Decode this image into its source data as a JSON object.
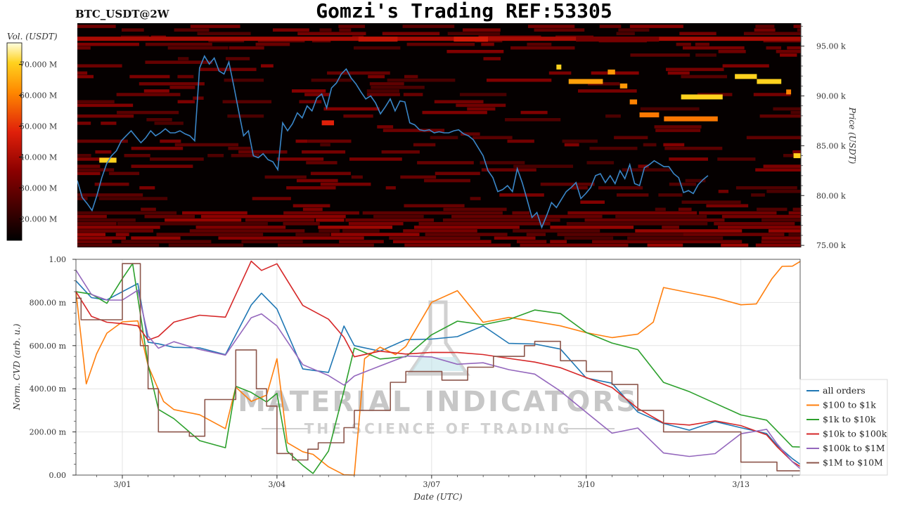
{
  "header": {
    "title": "Gomzi's Trading REF:53305",
    "pair": "BTC_USDT@2W"
  },
  "watermark": {
    "line1": "MATERIAL INDICATORS",
    "line2": "THE SCIENCE OF TRADING"
  },
  "colors": {
    "price_line": "#3a86c8",
    "heatmap_bg": "#050000",
    "all_orders": "#1f77b4",
    "usd_100_1k": "#ff7f0e",
    "usd_1k_10k": "#2ca02c",
    "usd_10k_100k": "#d62728",
    "usd_100k_1m": "#9467bd",
    "usd_1m_10m": "#8c564b"
  },
  "chart_data": [
    {
      "type": "heatmap",
      "name": "orderbook-heatmap",
      "colorbar": {
        "label": "Vol. (USDT)",
        "ticks": [
          "70.000 M",
          "60.000 M",
          "50.000 M",
          "40.000 M",
          "30.000 M",
          "20.000 M"
        ],
        "tick_values": [
          70,
          60,
          50,
          40,
          30,
          20
        ],
        "range": [
          13,
          77
        ]
      },
      "ylabel": "Price (USDT)",
      "yticks": [
        "95.00 k",
        "90.00 k",
        "85.00 k",
        "80.00 k",
        "75.00 k"
      ],
      "ytick_values": [
        95,
        90,
        85,
        80,
        75
      ],
      "ylim": [
        74.8,
        97.3
      ],
      "xlim": [
        -1.2,
        13.6
      ],
      "price_series": {
        "x": [
          -1.2,
          -1.1,
          -1.0,
          -0.9,
          -0.8,
          -0.7,
          -0.6,
          -0.5,
          -0.4,
          -0.3,
          -0.2,
          -0.1,
          0.0,
          0.1,
          0.2,
          0.3,
          0.4,
          0.5,
          0.6,
          0.7,
          0.8,
          0.9,
          1.0,
          1.1,
          1.2,
          1.3,
          1.4,
          1.5,
          1.6,
          1.7,
          1.8,
          1.9,
          2.0,
          2.1,
          2.2,
          2.3,
          2.4,
          2.5,
          2.6,
          2.7,
          2.8,
          2.9,
          3.0,
          3.1,
          3.2,
          3.3,
          3.4,
          3.5,
          3.6,
          3.7,
          3.8,
          3.9,
          4.0,
          4.1,
          4.2,
          4.3,
          4.4,
          4.5,
          4.6,
          4.7,
          4.8,
          4.9,
          5.0,
          5.1,
          5.2,
          5.3,
          5.4,
          5.5,
          5.6,
          5.7,
          5.8,
          5.9,
          6.0,
          6.1,
          6.2,
          6.3,
          6.4,
          6.5,
          6.6,
          6.7,
          6.8,
          6.9,
          7.0,
          7.1,
          7.2,
          7.3,
          7.4,
          7.5,
          7.6,
          7.7,
          7.8,
          7.9,
          8.0,
          8.1,
          8.2,
          8.3,
          8.4,
          8.5,
          8.6,
          8.7,
          8.8,
          8.9,
          9.0,
          9.1,
          9.2,
          9.3,
          9.4,
          9.5,
          9.6,
          9.7,
          9.8,
          9.9,
          10.0,
          10.1,
          10.2,
          10.3,
          10.4,
          10.5,
          10.6,
          10.7,
          10.8,
          10.9,
          11.0,
          11.1,
          11.2,
          11.3,
          11.4,
          11.5,
          11.6,
          11.7,
          11.8,
          11.9,
          12.0,
          12.1,
          12.2,
          12.3,
          12.4,
          12.5,
          12.6,
          12.7,
          12.8,
          12.9,
          13.0,
          13.1,
          13.2,
          13.3,
          13.4,
          13.5,
          13.6
        ],
        "y": [
          81.5,
          79.8,
          79.2,
          78.5,
          80.0,
          81.8,
          83.2,
          84.0,
          84.5,
          85.5,
          86.0,
          86.5,
          85.9,
          85.3,
          85.8,
          86.5,
          86.0,
          86.3,
          86.7,
          86.3,
          86.3,
          86.5,
          86.2,
          86.0,
          85.5,
          92.8,
          94.0,
          93.2,
          93.8,
          92.5,
          92.2,
          93.4,
          91.0,
          88.5,
          86.0,
          86.5,
          84.0,
          83.8,
          84.2,
          83.6,
          83.4,
          82.6,
          87.3,
          86.5,
          87.2,
          88.3,
          87.8,
          89.0,
          88.5,
          89.8,
          90.2,
          88.8,
          90.8,
          91.3,
          92.2,
          92.7,
          91.8,
          91.2,
          90.4,
          89.7,
          90.0,
          89.3,
          88.2,
          88.9,
          89.7,
          88.5,
          89.5,
          89.4,
          87.3,
          87.1,
          86.6,
          86.5,
          86.6,
          86.3,
          86.4,
          86.3,
          86.3,
          86.5,
          86.6,
          86.2,
          86.0,
          85.6,
          84.8,
          84.0,
          82.5,
          81.8,
          80.4,
          80.6,
          81.0,
          80.4,
          82.7,
          81.3,
          79.6,
          77.8,
          78.3,
          76.8,
          78.0,
          79.3,
          78.8,
          79.6,
          80.4,
          80.8,
          81.3,
          79.7,
          80.2,
          80.8,
          82.0,
          82.2,
          81.3,
          82.0,
          81.2,
          82.5,
          81.7,
          83.1,
          81.2,
          81.0,
          82.8,
          83.1,
          83.5,
          83.2,
          82.9,
          82.9,
          82.2,
          81.8,
          80.3,
          80.5,
          80.2,
          81.1,
          81.6,
          82.0
        ]
      },
      "large_walls": [
        {
          "x0": -0.75,
          "x1": -0.4,
          "price": 83.55,
          "level": 90
        },
        {
          "x0": 8.6,
          "x1": 8.7,
          "price": 92.9,
          "level": 90
        },
        {
          "x0": 8.85,
          "x1": 9.55,
          "price": 91.45,
          "level": 80
        },
        {
          "x0": 9.65,
          "x1": 9.8,
          "price": 92.4,
          "level": 78
        },
        {
          "x0": 9.9,
          "x1": 10.05,
          "price": 91.0,
          "level": 78
        },
        {
          "x0": 10.1,
          "x1": 10.25,
          "price": 89.4,
          "level": 74
        },
        {
          "x0": 10.3,
          "x1": 10.7,
          "price": 88.1,
          "level": 72
        },
        {
          "x0": 10.8,
          "x1": 11.9,
          "price": 87.7,
          "level": 72
        },
        {
          "x0": 11.15,
          "x1": 12.0,
          "price": 89.9,
          "level": 90
        },
        {
          "x0": 12.25,
          "x1": 12.7,
          "price": 91.95,
          "level": 90
        },
        {
          "x0": 12.7,
          "x1": 13.2,
          "price": 91.45,
          "level": 90
        },
        {
          "x0": 13.3,
          "x1": 13.4,
          "price": 90.4,
          "level": 74
        },
        {
          "x0": 13.45,
          "x1": 13.6,
          "price": 84.0,
          "level": 90
        },
        {
          "x0": 9.0,
          "x1": 10.7,
          "price": 95.7,
          "level": 30
        },
        {
          "x0": 3.8,
          "x1": 4.05,
          "price": 87.3,
          "level": 55
        },
        {
          "x0": 4.55,
          "x1": 5.35,
          "price": 95.7,
          "level": 48
        },
        {
          "x0": 6.5,
          "x1": 7.2,
          "price": 95.7,
          "level": 52
        }
      ]
    },
    {
      "type": "line",
      "name": "normalized-cvd",
      "xlabel": "Date (UTC)",
      "ylabel": "Norm. CVD (arb. u.)",
      "xticks": [
        "3/01",
        "3/04",
        "3/07",
        "3/10",
        "3/13"
      ],
      "xtick_values": [
        0,
        3,
        6,
        9,
        12
      ],
      "xlim": [
        -0.9,
        13.15
      ],
      "yticks": [
        "1.00",
        "800.00 m",
        "600.00 m",
        "400.00 m",
        "200.00 m",
        "0.00"
      ],
      "ytick_values": [
        1.0,
        0.8,
        0.6,
        0.4,
        0.2,
        0.0
      ],
      "ylim": [
        0,
        1
      ],
      "legend": "right",
      "series": [
        {
          "name": "all orders",
          "x": [
            -0.9,
            -0.6,
            -0.3,
            0.0,
            0.3,
            0.5,
            0.7,
            1.0,
            1.5,
            2.0,
            2.5,
            2.7,
            3.0,
            3.5,
            4.0,
            4.3,
            4.5,
            5.0,
            5.5,
            6.0,
            6.5,
            7.0,
            7.5,
            8.0,
            8.5,
            9.0,
            9.5,
            10.0,
            10.5,
            11.0,
            11.5,
            12.0,
            12.5,
            12.7,
            13.0,
            13.15
          ],
          "y": [
            0.9,
            0.82,
            0.8,
            0.85,
            0.9,
            0.62,
            0.6,
            0.6,
            0.6,
            0.57,
            0.8,
            0.85,
            0.78,
            0.5,
            0.48,
            0.68,
            0.6,
            0.57,
            0.62,
            0.62,
            0.63,
            0.68,
            0.6,
            0.6,
            0.58,
            0.45,
            0.43,
            0.3,
            0.25,
            0.22,
            0.26,
            0.23,
            0.2,
            0.15,
            0.08,
            0.05
          ]
        },
        {
          "name": "$100 to $1k",
          "x": [
            -0.9,
            -0.7,
            -0.5,
            -0.3,
            0.0,
            0.3,
            0.5,
            0.8,
            1.0,
            1.5,
            2.0,
            2.2,
            2.5,
            2.8,
            3.0,
            3.2,
            3.5,
            3.7,
            4.0,
            4.3,
            4.5,
            4.7,
            5.0,
            5.3,
            5.5,
            6.0,
            6.5,
            7.0,
            7.5,
            8.0,
            8.5,
            9.0,
            9.5,
            10.0,
            10.3,
            10.5,
            11.0,
            11.5,
            12.0,
            12.3,
            12.6,
            12.8,
            13.0,
            13.15
          ],
          "y": [
            0.85,
            0.42,
            0.55,
            0.65,
            0.7,
            0.72,
            0.5,
            0.35,
            0.3,
            0.28,
            0.22,
            0.4,
            0.35,
            0.38,
            0.55,
            0.15,
            0.12,
            0.1,
            0.05,
            0.0,
            0.0,
            0.55,
            0.6,
            0.55,
            0.6,
            0.8,
            0.85,
            0.7,
            0.72,
            0.7,
            0.68,
            0.65,
            0.63,
            0.65,
            0.72,
            0.87,
            0.85,
            0.83,
            0.8,
            0.8,
            0.9,
            0.97,
            0.98,
            0.99
          ]
        },
        {
          "name": "$1k to $10k",
          "x": [
            -0.9,
            -0.6,
            -0.3,
            0.0,
            0.2,
            0.5,
            0.7,
            1.0,
            1.5,
            2.0,
            2.2,
            2.5,
            2.8,
            3.0,
            3.2,
            3.5,
            3.7,
            4.0,
            4.3,
            4.5,
            5.0,
            5.5,
            6.0,
            6.5,
            7.0,
            7.5,
            8.0,
            8.5,
            9.0,
            9.5,
            10.0,
            10.5,
            11.0,
            11.5,
            12.0,
            12.5,
            13.0,
            13.15
          ],
          "y": [
            0.85,
            0.85,
            0.8,
            0.9,
            0.98,
            0.5,
            0.3,
            0.25,
            0.15,
            0.12,
            0.4,
            0.38,
            0.35,
            0.38,
            0.1,
            0.05,
            0.0,
            0.12,
            0.4,
            0.6,
            0.55,
            0.56,
            0.66,
            0.72,
            0.7,
            0.72,
            0.76,
            0.74,
            0.65,
            0.6,
            0.57,
            0.42,
            0.38,
            0.33,
            0.28,
            0.26,
            0.14,
            0.13
          ]
        },
        {
          "name": "$10k to $100k",
          "x": [
            -0.9,
            -0.6,
            -0.3,
            0.0,
            0.3,
            0.5,
            0.7,
            1.0,
            1.5,
            2.0,
            2.5,
            2.7,
            3.0,
            3.5,
            4.0,
            4.3,
            4.5,
            5.0,
            5.5,
            6.0,
            6.5,
            7.0,
            7.5,
            8.0,
            8.5,
            9.0,
            9.5,
            10.0,
            10.5,
            11.0,
            11.5,
            12.0,
            12.5,
            12.7,
            13.0,
            13.15
          ],
          "y": [
            0.85,
            0.74,
            0.72,
            0.7,
            0.68,
            0.62,
            0.65,
            0.7,
            0.73,
            0.72,
            0.98,
            0.94,
            0.97,
            0.78,
            0.72,
            0.65,
            0.55,
            0.58,
            0.57,
            0.58,
            0.58,
            0.57,
            0.55,
            0.53,
            0.5,
            0.45,
            0.4,
            0.3,
            0.23,
            0.22,
            0.24,
            0.22,
            0.18,
            0.12,
            0.06,
            0.04
          ]
        },
        {
          "name": "$100k to $1M",
          "x": [
            -0.9,
            -0.6,
            -0.3,
            0.0,
            0.3,
            0.5,
            0.7,
            1.0,
            1.5,
            2.0,
            2.5,
            2.7,
            3.0,
            3.5,
            4.0,
            4.3,
            4.5,
            5.0,
            5.5,
            6.0,
            6.5,
            7.0,
            7.5,
            8.0,
            8.5,
            9.0,
            9.5,
            10.0,
            10.5,
            11.0,
            11.5,
            12.0,
            12.5,
            12.7,
            13.0,
            13.15
          ],
          "y": [
            0.95,
            0.83,
            0.82,
            0.82,
            0.85,
            0.65,
            0.6,
            0.62,
            0.58,
            0.55,
            0.72,
            0.75,
            0.68,
            0.5,
            0.45,
            0.42,
            0.45,
            0.5,
            0.55,
            0.55,
            0.52,
            0.53,
            0.5,
            0.48,
            0.4,
            0.3,
            0.2,
            0.22,
            0.1,
            0.08,
            0.09,
            0.18,
            0.2,
            0.14,
            0.05,
            0.03
          ]
        },
        {
          "name": "$1M to $10M",
          "x": [
            -0.9,
            -0.8,
            -0.8,
            0.0,
            0.0,
            0.35,
            0.35,
            0.5,
            0.5,
            0.7,
            0.7,
            1.3,
            1.3,
            1.6,
            1.6,
            2.2,
            2.2,
            2.6,
            2.6,
            2.8,
            2.8,
            3.0,
            3.0,
            3.3,
            3.3,
            3.6,
            3.6,
            3.8,
            3.8,
            4.3,
            4.3,
            4.5,
            4.5,
            5.2,
            5.2,
            5.5,
            5.5,
            6.2,
            6.2,
            6.7,
            6.7,
            7.2,
            7.2,
            7.8,
            7.8,
            8.0,
            8.0,
            8.5,
            8.5,
            9.0,
            9.0,
            9.5,
            9.5,
            10.0,
            10.0,
            10.5,
            10.5,
            11.0,
            11.0,
            11.5,
            11.5,
            12.0,
            12.0,
            12.7,
            12.7,
            13.15
          ],
          "y": [
            0.82,
            0.82,
            0.72,
            0.72,
            0.98,
            0.98,
            0.6,
            0.6,
            0.4,
            0.4,
            0.2,
            0.2,
            0.18,
            0.18,
            0.35,
            0.35,
            0.58,
            0.58,
            0.4,
            0.4,
            0.32,
            0.32,
            0.1,
            0.1,
            0.07,
            0.07,
            0.12,
            0.12,
            0.15,
            0.15,
            0.22,
            0.22,
            0.3,
            0.3,
            0.43,
            0.43,
            0.48,
            0.48,
            0.44,
            0.44,
            0.5,
            0.5,
            0.55,
            0.55,
            0.6,
            0.6,
            0.62,
            0.62,
            0.53,
            0.53,
            0.48,
            0.48,
            0.42,
            0.42,
            0.3,
            0.3,
            0.2,
            0.2,
            0.2,
            0.2,
            0.2,
            0.2,
            0.06,
            0.06,
            0.02,
            0.02
          ]
        }
      ]
    }
  ]
}
